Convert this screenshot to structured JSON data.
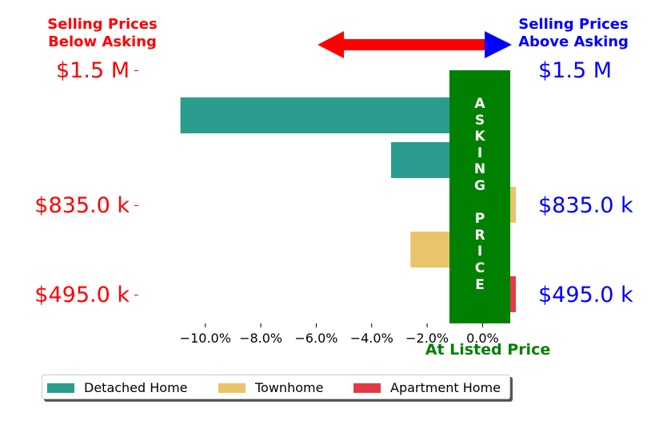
{
  "header": {
    "left_line1": "Selling Prices",
    "left_line2": "Below Asking",
    "right_line1": "Selling Prices",
    "right_line2": "Above Asking",
    "left_color": "#ff0000",
    "right_color": "#0000ff"
  },
  "price_levels": {
    "left": [
      "$1.5 M",
      "$835.0 k",
      "$495.0 k"
    ],
    "right": [
      "$1.5 M",
      "$835.0 k",
      "$495.0 k"
    ]
  },
  "asking_column": {
    "letters": [
      "A",
      "S",
      "K",
      "I",
      "N",
      "G",
      "",
      "P",
      "R",
      "I",
      "C",
      "E"
    ],
    "color": "#008000"
  },
  "listed_label": "At Listed Price",
  "chart_data": {
    "type": "bar",
    "orientation": "horizontal",
    "xlabel": "",
    "ylabel": "",
    "xlim": [
      -12.1,
      1.2
    ],
    "x_ticks": [
      -10,
      -8,
      -6,
      -4,
      -2,
      0
    ],
    "x_tick_labels": [
      "−10.0%",
      "−8.0%",
      "−6.0%",
      "−4.0%",
      "−2.0%",
      "0.0%"
    ],
    "bars": [
      {
        "series": "Detached Home",
        "row": 0,
        "value": -10.9
      },
      {
        "series": "Detached Home",
        "row": 1,
        "value": -3.3
      },
      {
        "series": "Townhome",
        "row": 2,
        "value": 1.2
      },
      {
        "series": "Townhome",
        "row": 3,
        "value": -2.6
      },
      {
        "series": "Apartment Home",
        "row": 4,
        "value": 1.2
      }
    ],
    "series": [
      {
        "name": "Detached Home",
        "color": "#2a9d8f"
      },
      {
        "name": "Townhome",
        "color": "#e9c46a"
      },
      {
        "name": "Apartment Home",
        "color": "#e63946"
      }
    ],
    "legend_position": "bottom",
    "grid": false
  }
}
